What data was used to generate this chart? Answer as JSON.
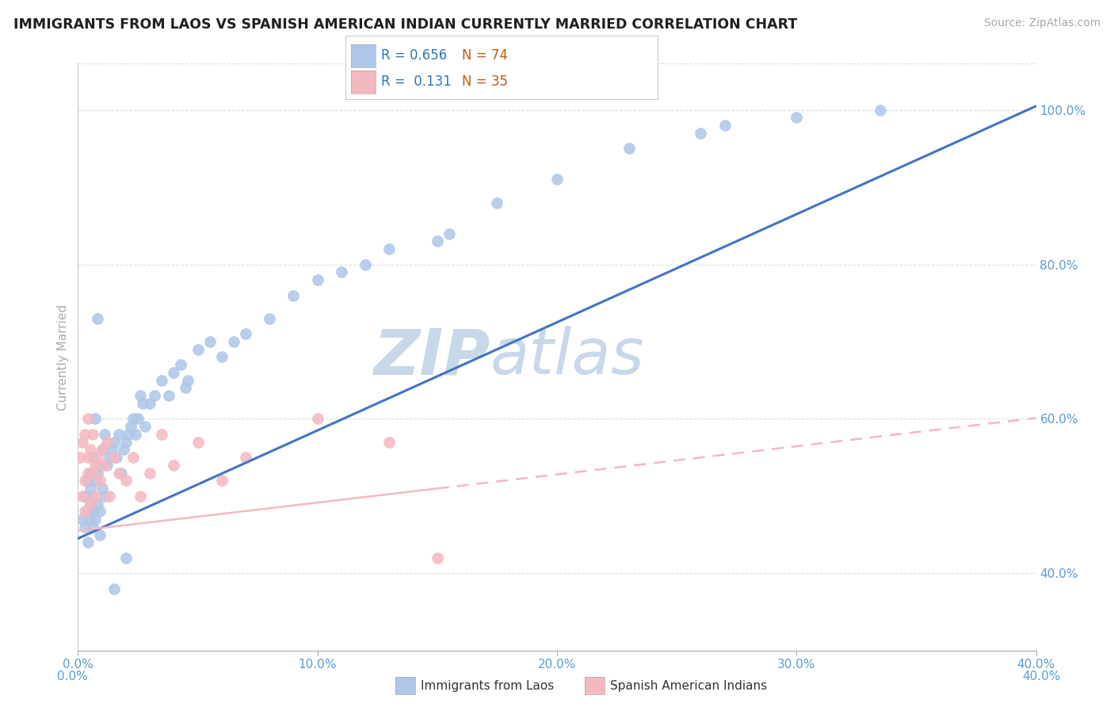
{
  "title": "IMMIGRANTS FROM LAOS VS SPANISH AMERICAN INDIAN CURRENTLY MARRIED CORRELATION CHART",
  "source": "Source: ZipAtlas.com",
  "ylabel": "Currently Married",
  "xlim": [
    0.0,
    0.4
  ],
  "ylim": [
    0.3,
    1.06
  ],
  "ytick_values": [
    0.4,
    0.6,
    0.8,
    1.0
  ],
  "xtick_values": [
    0.0,
    0.1,
    0.2,
    0.3,
    0.4
  ],
  "legend1_label": "R = 0.656  N = 74",
  "legend2_label": "R =  0.131  N = 35",
  "series1_color": "#aec6e8",
  "series2_color": "#f4b8c1",
  "line1_color": "#4472c4",
  "line2_color": "#f4b8c1",
  "watermark_zip_color": "#c8d8e8",
  "watermark_atlas_color": "#c8d8e8",
  "title_color": "#1f1f1f",
  "axis_color": "#aaaaaa",
  "grid_color": "#dddddd",
  "background_color": "#ffffff",
  "legend_text_color": "#2e75b6",
  "tick_label_color": "#5b9bd5",
  "legend_N_color": "#c55a11",
  "line1_intercept": 0.445,
  "line1_slope": 1.4,
  "line2_intercept": 0.455,
  "line2_slope": 0.365,
  "s1_x": [
    0.002,
    0.003,
    0.003,
    0.004,
    0.004,
    0.004,
    0.005,
    0.005,
    0.005,
    0.005,
    0.006,
    0.006,
    0.006,
    0.006,
    0.007,
    0.007,
    0.007,
    0.008,
    0.008,
    0.009,
    0.009,
    0.01,
    0.01,
    0.011,
    0.011,
    0.012,
    0.013,
    0.014,
    0.015,
    0.016,
    0.017,
    0.018,
    0.019,
    0.02,
    0.021,
    0.022,
    0.023,
    0.024,
    0.025,
    0.026,
    0.027,
    0.028,
    0.03,
    0.032,
    0.035,
    0.038,
    0.04,
    0.043,
    0.046,
    0.05,
    0.055,
    0.06,
    0.065,
    0.07,
    0.08,
    0.09,
    0.1,
    0.11,
    0.12,
    0.13,
    0.155,
    0.175,
    0.2,
    0.23,
    0.26,
    0.3,
    0.335,
    0.15,
    0.045,
    0.008,
    0.009,
    0.02,
    0.015,
    0.27
  ],
  "s1_y": [
    0.47,
    0.5,
    0.46,
    0.48,
    0.52,
    0.44,
    0.49,
    0.51,
    0.47,
    0.53,
    0.5,
    0.46,
    0.55,
    0.48,
    0.52,
    0.47,
    0.6,
    0.53,
    0.49,
    0.54,
    0.48,
    0.56,
    0.51,
    0.58,
    0.5,
    0.54,
    0.55,
    0.56,
    0.57,
    0.55,
    0.58,
    0.53,
    0.56,
    0.57,
    0.58,
    0.59,
    0.6,
    0.58,
    0.6,
    0.63,
    0.62,
    0.59,
    0.62,
    0.63,
    0.65,
    0.63,
    0.66,
    0.67,
    0.65,
    0.69,
    0.7,
    0.68,
    0.7,
    0.71,
    0.73,
    0.76,
    0.78,
    0.79,
    0.8,
    0.82,
    0.84,
    0.88,
    0.91,
    0.95,
    0.97,
    0.99,
    1.0,
    0.83,
    0.64,
    0.73,
    0.45,
    0.42,
    0.38,
    0.98
  ],
  "s2_x": [
    0.001,
    0.002,
    0.002,
    0.003,
    0.003,
    0.003,
    0.004,
    0.004,
    0.004,
    0.005,
    0.005,
    0.006,
    0.006,
    0.007,
    0.007,
    0.008,
    0.009,
    0.01,
    0.011,
    0.012,
    0.013,
    0.015,
    0.017,
    0.02,
    0.023,
    0.026,
    0.03,
    0.035,
    0.04,
    0.05,
    0.06,
    0.07,
    0.1,
    0.13,
    0.15
  ],
  "s2_y": [
    0.55,
    0.57,
    0.5,
    0.52,
    0.48,
    0.58,
    0.55,
    0.6,
    0.53,
    0.56,
    0.49,
    0.58,
    0.53,
    0.54,
    0.5,
    0.55,
    0.52,
    0.56,
    0.54,
    0.57,
    0.5,
    0.55,
    0.53,
    0.52,
    0.55,
    0.5,
    0.53,
    0.58,
    0.54,
    0.57,
    0.52,
    0.55,
    0.6,
    0.57,
    0.42
  ]
}
